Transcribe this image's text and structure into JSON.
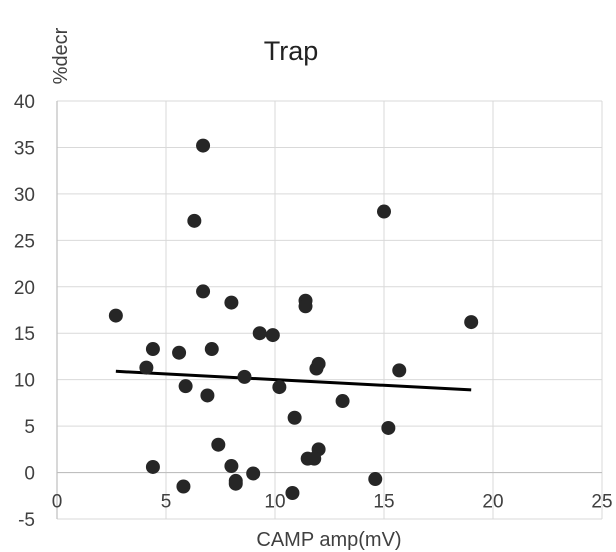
{
  "chart_data": {
    "type": "scatter",
    "title": "Trap",
    "xlabel": "CAMP amp(mV)",
    "ylabel": "%decr",
    "xlim": [
      0,
      25
    ],
    "ylim": [
      -5,
      40
    ],
    "x_ticks": [
      "0",
      "5",
      "10",
      "15",
      "20",
      "25"
    ],
    "y_ticks": [
      "-5",
      "0",
      "5",
      "10",
      "15",
      "20",
      "25",
      "30",
      "35",
      "40"
    ],
    "grid": true,
    "marker_color": "#262626",
    "trendline": {
      "type": "linear",
      "color": "#000000",
      "points": [
        [
          2.7,
          10.9
        ],
        [
          19.0,
          8.9
        ]
      ]
    },
    "points": [
      [
        6.7,
        35.2
      ],
      [
        6.3,
        27.1
      ],
      [
        15.0,
        28.1
      ],
      [
        6.7,
        19.5
      ],
      [
        8.0,
        18.3
      ],
      [
        11.4,
        18.5
      ],
      [
        11.4,
        17.9
      ],
      [
        2.7,
        16.9
      ],
      [
        19.0,
        16.2
      ],
      [
        9.3,
        15.0
      ],
      [
        9.9,
        14.8
      ],
      [
        4.4,
        13.3
      ],
      [
        5.6,
        12.9
      ],
      [
        7.1,
        13.3
      ],
      [
        4.1,
        11.3
      ],
      [
        12.0,
        11.7
      ],
      [
        11.9,
        11.2
      ],
      [
        15.7,
        11.0
      ],
      [
        8.6,
        10.3
      ],
      [
        5.9,
        9.3
      ],
      [
        10.2,
        9.2
      ],
      [
        6.9,
        8.3
      ],
      [
        13.1,
        7.7
      ],
      [
        10.9,
        5.9
      ],
      [
        15.2,
        4.8
      ],
      [
        7.4,
        3.0
      ],
      [
        12.0,
        2.5
      ],
      [
        11.5,
        1.5
      ],
      [
        11.8,
        1.5
      ],
      [
        4.4,
        0.6
      ],
      [
        8.0,
        0.7
      ],
      [
        9.0,
        -0.1
      ],
      [
        8.2,
        -0.9
      ],
      [
        8.2,
        -1.2
      ],
      [
        5.8,
        -1.5
      ],
      [
        14.6,
        -0.7
      ],
      [
        10.8,
        -2.2
      ]
    ]
  }
}
